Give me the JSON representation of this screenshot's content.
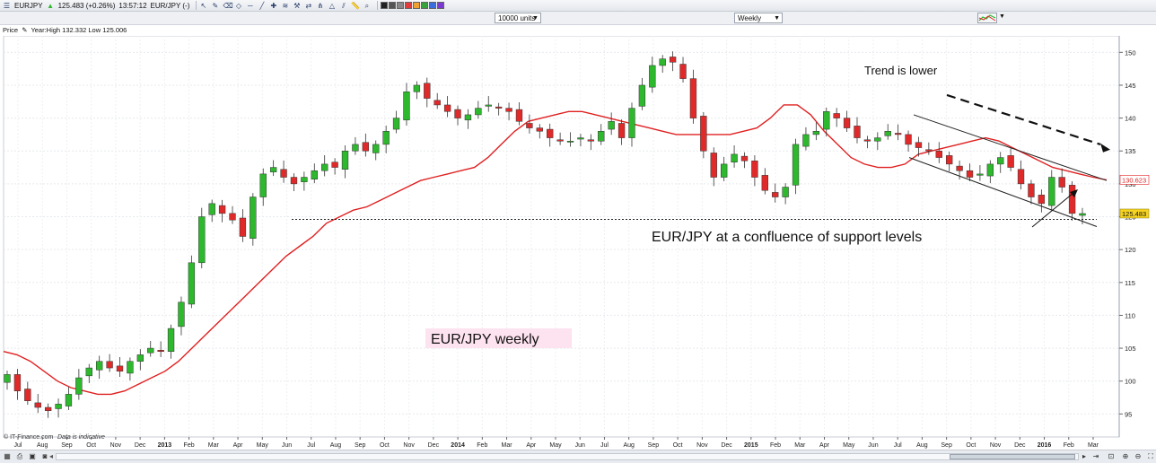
{
  "toolbar": {
    "symbol": "EURJPY",
    "quote": "125.483 (+0.26%)",
    "time": "13:57:12",
    "pair": "EUR/JPY (-)",
    "tool_icons": [
      "cursor-icon",
      "pencil-icon",
      "eraser-icon",
      "shapes-icon",
      "line-icon",
      "trendline-icon",
      "cross-icon",
      "fibonacci-icon",
      "hammer-icon",
      "arrows-icon",
      "pitchfork-icon",
      "triangle-icon",
      "channel-icon",
      "ruler-icon",
      "zoom-icon"
    ],
    "colors": [
      "#222222",
      "#555555",
      "#888888",
      "#e23b3b",
      "#f0a030",
      "#3aa23a",
      "#3a6ee0",
      "#7a3ad0"
    ]
  },
  "controls": {
    "units": "10000 units",
    "period": "Weekly",
    "price_label": "Price",
    "year_info": "Year:High 132.332 Low 125.006"
  },
  "chart_data": {
    "type": "candlestick",
    "title": "",
    "xlabel": "",
    "ylabel": "",
    "ylim": [
      91.5,
      152.5
    ],
    "y_ticks": [
      95,
      100,
      105,
      110,
      115,
      120,
      125,
      130,
      135,
      140,
      145,
      150
    ],
    "x_labels": [
      "Jul",
      "Aug",
      "Sep",
      "Oct",
      "Nov",
      "Dec",
      "2013",
      "Feb",
      "Mar",
      "Apr",
      "May",
      "Jun",
      "Jul",
      "Aug",
      "Sep",
      "Oct",
      "Nov",
      "Dec",
      "2014",
      "Feb",
      "Mar",
      "Apr",
      "May",
      "Jun",
      "Jul",
      "Aug",
      "Sep",
      "Oct",
      "Nov",
      "Dec",
      "2015",
      "Feb",
      "Mar",
      "Apr",
      "May",
      "Jun",
      "Jul",
      "Aug",
      "Sep",
      "Oct",
      "Nov",
      "Dec",
      "2016",
      "Feb",
      "Mar"
    ],
    "x_start": "2012-07",
    "x_end": "2016-03",
    "last_price": "125.483",
    "ma_value": "130.623",
    "close_series": [
      101,
      98.5,
      97,
      96,
      95.5,
      96.5,
      98,
      100.5,
      102,
      103,
      102,
      101.5,
      103,
      104,
      105,
      104.5,
      108,
      112,
      118,
      125,
      127,
      125.5,
      124.5,
      122,
      128,
      131.5,
      132.5,
      131,
      130,
      131,
      132,
      133,
      132.5,
      135,
      136,
      135,
      136,
      138,
      140,
      144,
      145,
      143,
      142,
      141,
      140,
      140.5,
      141.5,
      142,
      141.5,
      141,
      139.5,
      138.5,
      138,
      137,
      136.5,
      136.5,
      137,
      136.5,
      138,
      139.5,
      137,
      141.5,
      145,
      148,
      149,
      148.5,
      146,
      140,
      135,
      131,
      133,
      134.5,
      133.5,
      131,
      129,
      128,
      129.5,
      136,
      137.5,
      138,
      141,
      140,
      138.5,
      137,
      136.5,
      137,
      138,
      137.5,
      136,
      135.5,
      135,
      134,
      133,
      132,
      131,
      131.5,
      133,
      134,
      132.5,
      130,
      128,
      127,
      131,
      129.5,
      125.5,
      125.483
    ],
    "ma_series": [
      104.5,
      104,
      103,
      101.5,
      100,
      99,
      98.5,
      98,
      98,
      98.5,
      99.5,
      100.5,
      101.5,
      103,
      105,
      107,
      109,
      111,
      113,
      115,
      117,
      119,
      120.5,
      122,
      124,
      125,
      126,
      126.5,
      127.5,
      128.5,
      129.5,
      130.5,
      131,
      131.5,
      132,
      132.5,
      134,
      136,
      138,
      139.5,
      140,
      140.5,
      141,
      141,
      140.5,
      140,
      139.5,
      139,
      138.5,
      138,
      137.5,
      137.5,
      137.5,
      137.5,
      137.5,
      138,
      138.5,
      140,
      142,
      142,
      140.5,
      138,
      136,
      134,
      133,
      132.5,
      132.5,
      133,
      134.5,
      135,
      135.5,
      136,
      136.5,
      137,
      136.5,
      135.5,
      134.5,
      133.5,
      132.5,
      132,
      131.5,
      131,
      130.6
    ],
    "support_level": 124.6,
    "annotations": {
      "trend": "Trend is lower",
      "support": "EUR/JPY at a confluence of support levels",
      "label": "EUR/JPY weekly"
    },
    "footer": {
      "source": "© IT-Finance.com",
      "note": "Data is indicative"
    },
    "colors": {
      "up": "#2db82d",
      "down": "#e02a2a",
      "ma": "#e02020",
      "label_bg": "#fde2ef",
      "last_price_bg": "#f5d320"
    }
  }
}
